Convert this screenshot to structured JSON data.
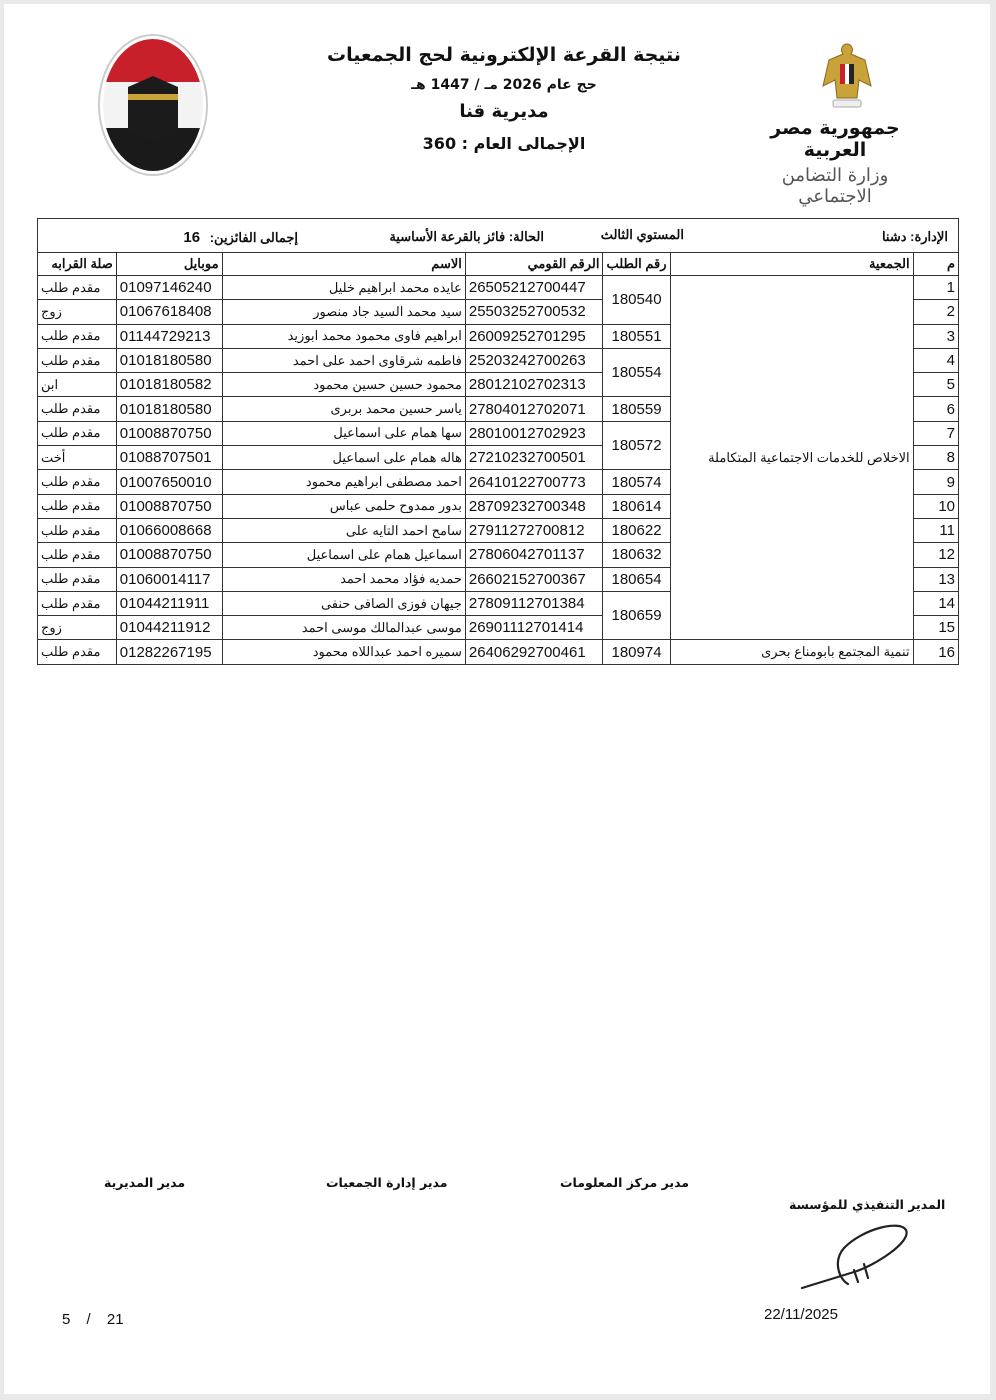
{
  "header": {
    "title": "نتيجة القرعة الإلكترونية لحج الجمعيات",
    "year_line": "حج عام 2026 مـ / 1447 هـ",
    "directorate": "مديرية قنا",
    "grand_total": "الإجمالى العام : 360",
    "republic": "جمهورية مصر العربية",
    "ministry": "وزارة التضامن الاجتماعي",
    "left_logo": "وزارة التضامن الاجتماعي - hajj-logo"
  },
  "info": {
    "administration_label": "الإدارة:",
    "administration": "دشنا",
    "level": "المستوي الثالث",
    "status_label": "الحالة:",
    "status": "فائز بالقرعة الأساسية",
    "winners_label": "إجمالى الفائزين:",
    "winners": "16"
  },
  "columns": {
    "n": "م",
    "association": "الجمعية",
    "request_no": "رقم الطلب",
    "national_id": "الرقم القومي",
    "name": "الاسم",
    "mobile": "موبايل",
    "relation": "صلة القرابه"
  },
  "associations": [
    {
      "name": "الاخلاص للخدمات الاجتماعية المتكاملة",
      "requests": [
        {
          "request_no": "180540",
          "members": [
            {
              "n": "1",
              "national_id": "26505212700447",
              "name": "عايده محمد ابراهيم خليل",
              "mobile": "01097146240",
              "relation": "مقدم طلب"
            },
            {
              "n": "2",
              "national_id": "25503252700532",
              "name": "سيد محمد السيد جاد منصور",
              "mobile": "01067618408",
              "relation": "زوج"
            }
          ]
        },
        {
          "request_no": "180551",
          "members": [
            {
              "n": "3",
              "national_id": "26009252701295",
              "name": "ابراهيم فاوى محمود محمد ابوزيد",
              "mobile": "01144729213",
              "relation": "مقدم طلب"
            }
          ]
        },
        {
          "request_no": "180554",
          "members": [
            {
              "n": "4",
              "national_id": "25203242700263",
              "name": "فاطمه شرقاوى احمد على احمد",
              "mobile": "01018180580",
              "relation": "مقدم طلب"
            },
            {
              "n": "5",
              "national_id": "28012102702313",
              "name": "محمود حسين حسين محمود",
              "mobile": "01018180582",
              "relation": "ابن"
            }
          ]
        },
        {
          "request_no": "180559",
          "members": [
            {
              "n": "6",
              "national_id": "27804012702071",
              "name": "ياسر حسين محمد بربرى",
              "mobile": "01018180580",
              "relation": "مقدم طلب"
            }
          ]
        },
        {
          "request_no": "180572",
          "members": [
            {
              "n": "7",
              "national_id": "28010012702923",
              "name": "سها همام على اسماعيل",
              "mobile": "01008870750",
              "relation": "مقدم طلب"
            },
            {
              "n": "8",
              "national_id": "27210232700501",
              "name": "هاله همام على اسماعيل",
              "mobile": "01088707501",
              "relation": "أخت"
            }
          ]
        },
        {
          "request_no": "180574",
          "members": [
            {
              "n": "9",
              "national_id": "26410122700773",
              "name": "احمد مصطفى ابراهيم محمود",
              "mobile": "01007650010",
              "relation": "مقدم طلب"
            }
          ]
        },
        {
          "request_no": "180614",
          "members": [
            {
              "n": "10",
              "national_id": "28709232700348",
              "name": "بدور ممدوح حلمى عباس",
              "mobile": "01008870750",
              "relation": "مقدم طلب"
            }
          ]
        },
        {
          "request_no": "180622",
          "members": [
            {
              "n": "11",
              "national_id": "27911272700812",
              "name": "سامح احمد التايه على",
              "mobile": "01066008668",
              "relation": "مقدم طلب"
            }
          ]
        },
        {
          "request_no": "180632",
          "members": [
            {
              "n": "12",
              "national_id": "27806042701137",
              "name": "اسماعيل همام على اسماعيل",
              "mobile": "01008870750",
              "relation": "مقدم طلب"
            }
          ]
        },
        {
          "request_no": "180654",
          "members": [
            {
              "n": "13",
              "national_id": "26602152700367",
              "name": "حمديه فؤاد محمد احمد",
              "mobile": "01060014117",
              "relation": "مقدم طلب"
            }
          ]
        },
        {
          "request_no": "180659",
          "members": [
            {
              "n": "14",
              "national_id": "27809112701384",
              "name": "جيهان فوزى الصافى حنفى",
              "mobile": "01044211911",
              "relation": "مقدم طلب"
            },
            {
              "n": "15",
              "national_id": "26901112701414",
              "name": "موسى عبدالمالك موسى احمد",
              "mobile": "01044211912",
              "relation": "زوج"
            }
          ]
        }
      ]
    },
    {
      "name": "تنمية المجتمع بابومناع بحرى",
      "requests": [
        {
          "request_no": "180974",
          "members": [
            {
              "n": "16",
              "national_id": "26406292700461",
              "name": "سميره احمد عبداللاه محمود",
              "mobile": "01282267195",
              "relation": "مقدم طلب"
            }
          ]
        }
      ]
    }
  ],
  "footer": {
    "sig_directorate": "مدير المديرية",
    "sig_associations": "مدير إدارة الجمعيات",
    "sig_info_center": "مدير مركز المعلومات",
    "sig_executive": "المدير التنفيذي للمؤسسة",
    "date": "22/11/2025",
    "page_current": "5",
    "page_sep": "/",
    "page_total": "21"
  }
}
